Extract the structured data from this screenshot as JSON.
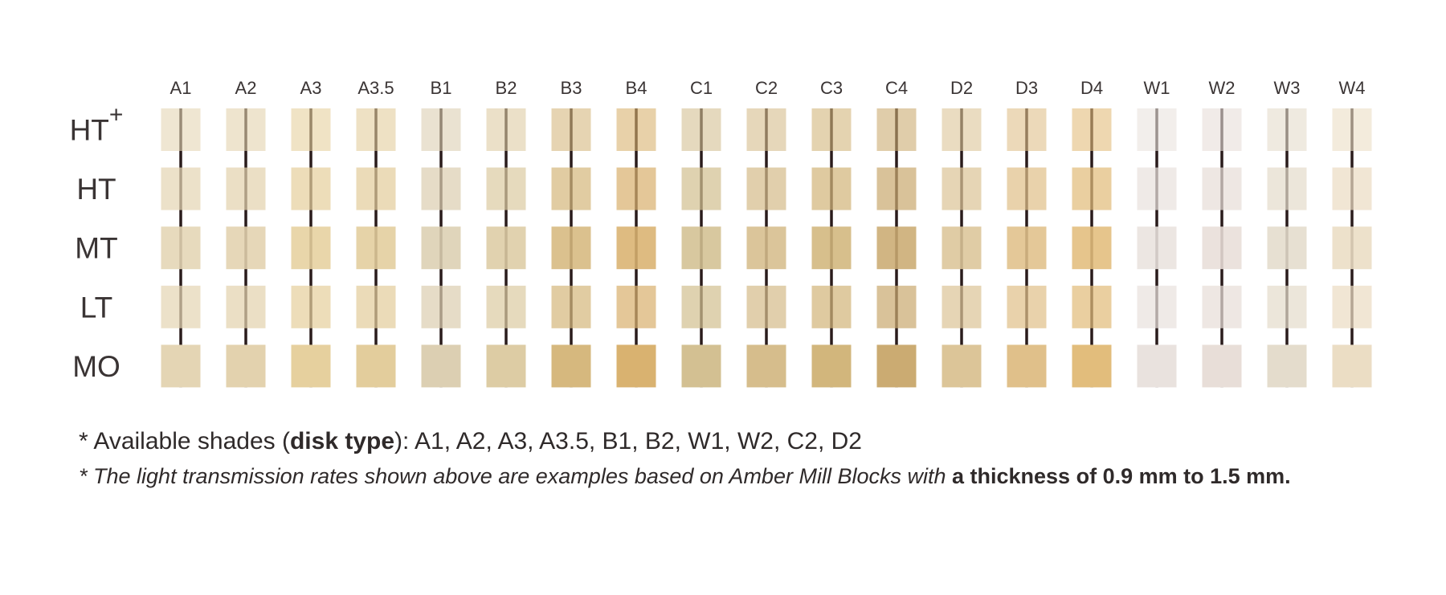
{
  "header": {
    "columns": [
      {
        "label": "A1",
        "color": "#e4d5b4"
      },
      {
        "label": "A2",
        "color": "#e3d2ae"
      },
      {
        "label": "A3",
        "color": "#e6d09e"
      },
      {
        "label": "A3.5",
        "color": "#e3cd9c"
      },
      {
        "label": "B1",
        "color": "#dccfb2"
      },
      {
        "label": "B2",
        "color": "#ddcca4"
      },
      {
        "label": "B3",
        "color": "#d6b87e"
      },
      {
        "label": "B4",
        "color": "#d9b270"
      },
      {
        "label": "C1",
        "color": "#d3c092"
      },
      {
        "label": "C2",
        "color": "#d6bd8c"
      },
      {
        "label": "C3",
        "color": "#d2b67c"
      },
      {
        "label": "C4",
        "color": "#cbab72"
      },
      {
        "label": "D2",
        "color": "#dcc598"
      },
      {
        "label": "D3",
        "color": "#e0c08a"
      },
      {
        "label": "D4",
        "color": "#e2bd7c"
      },
      {
        "label": "W1",
        "color": "#e9e2de"
      },
      {
        "label": "W2",
        "color": "#e8ded8"
      },
      {
        "label": "W3",
        "color": "#e4dccc"
      },
      {
        "label": "W4",
        "color": "#ebddc4"
      }
    ]
  },
  "rows": [
    {
      "label": "HT",
      "sup": "+"
    },
    {
      "label": "HT"
    },
    {
      "label": "MT"
    },
    {
      "label": "LT"
    },
    {
      "label": "MO"
    }
  ],
  "notes": {
    "available": {
      "prefix": "* Available shades (",
      "bold": "disk type",
      "suffix": "):  A1, A2, A3, A3.5, B1, B2, W1, W2, C2, D2"
    },
    "transmission": {
      "text": "* The light transmission rates shown above are examples based on Amber Mill Blocks with ",
      "bold": "a thickness of 0.9 mm to 1.5 mm."
    }
  }
}
